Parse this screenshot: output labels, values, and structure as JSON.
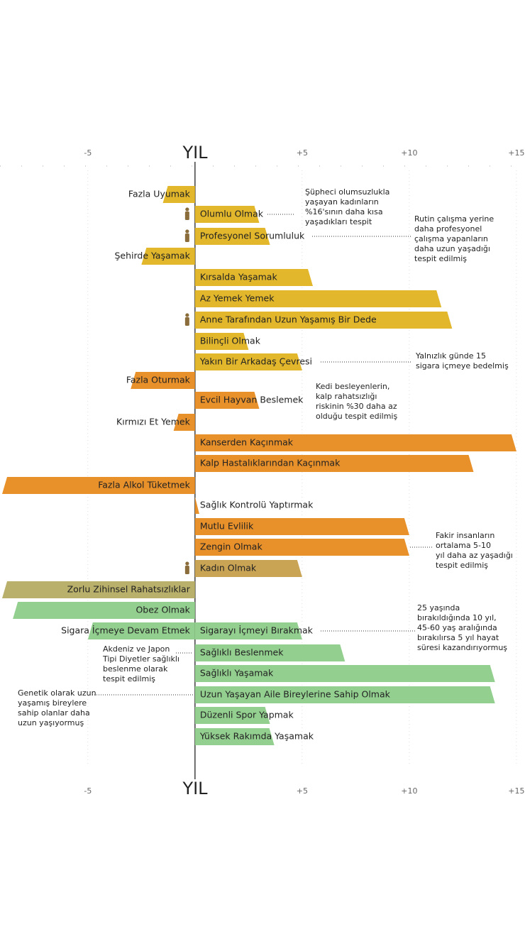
{
  "chart_data": {
    "type": "bar",
    "orientation": "horizontal",
    "x_label": "YIL",
    "categories": [
      "Fazla Uyumak",
      "Olumlu Olmak",
      "Profesyonel Sorumluluk",
      "Şehirde Yaşamak",
      "Kırsalda Yaşamak",
      "Az Yemek Yemek",
      "Anne Tarafından Uzun Yaşamış Bir Dede",
      "Bilinçli Olmak",
      "Yakın Bir Arkadaş Çevresi",
      "Fazla Oturmak",
      "Evcil Hayvan Beslemek",
      "Kırmızı Et Yemek",
      "Kanserden Kaçınmak",
      "Kalp Hastalıklarından Kaçınmak",
      "Fazla Alkol Tüketmek",
      "Sağlık Kontrolü Yaptırmak",
      "Mutlu Evlilik",
      "Zengin Olmak",
      "Kadın Olmak",
      "Zorlu Zihinsel Rahatsızlıklar",
      "Obez Olmak",
      "Sigara İçmeye Devam Etmek",
      "Sigarayı İçmeyi Bırakmak",
      "Sağlıklı Beslenmek",
      "Sağlıklı Yaşamak",
      "Uzun Yaşayan Aile Bireylerine Sahip Olmak",
      "Düzenli Spor Yapmak",
      "Yüksek Rakımda Yaşamak"
    ],
    "values": [
      -1.5,
      3,
      3.5,
      -2.5,
      5.5,
      11.5,
      12,
      2.5,
      5,
      -3,
      3,
      -1,
      15,
      13,
      -9,
      0.2,
      10,
      10,
      5,
      -9,
      -8.5,
      -5,
      5,
      7,
      14,
      14,
      3.5,
      3.7
    ],
    "colors": [
      "#e2b72b",
      "#e2b72b",
      "#e2b72b",
      "#e2b72b",
      "#e2b72b",
      "#e2b72b",
      "#e2b72b",
      "#e2b72b",
      "#e2b72b",
      "#e8902a",
      "#e8902a",
      "#e8902a",
      "#e8902a",
      "#e8902a",
      "#e8902a",
      "#e8902a",
      "#e8902a",
      "#e8902a",
      "#caa455",
      "#b9b06b",
      "#93cf8f",
      "#93cf8f",
      "#93cf8f",
      "#93cf8f",
      "#93cf8f",
      "#93cf8f",
      "#93cf8f",
      "#93cf8f"
    ],
    "xlim": [
      -9.1,
      15.4
    ],
    "xticks": [
      -5,
      {
        "value": 5,
        "label": "+5"
      },
      {
        "value": 10,
        "label": "+10"
      },
      {
        "value": 15,
        "label": "+15"
      }
    ],
    "annotations": [
      {
        "lines": [
          "Şüpheci olumsuzlukla",
          "yaşayan kadınların",
          "%16'sının daha kısa",
          "yaşadıkları tespit"
        ]
      },
      {
        "lines": [
          "Rutin çalışma yerine",
          "daha profesyonel",
          "çalışma yapanların",
          "daha uzun yaşadığı",
          "tespit edilmiş"
        ]
      },
      {
        "lines": [
          "Yalnızlık günde 15",
          "sigara içmeye bedelmiş"
        ]
      },
      {
        "lines": [
          "Kedi besleyenlerin,",
          "kalp rahatsızlığı",
          "riskinin %30 daha az",
          "olduğu tespit edilmiş"
        ]
      },
      {
        "lines": [
          "Fakir insanların",
          "ortalama 5-10",
          "yıl daha az yaşadığı",
          "tespit edilmiş"
        ]
      },
      {
        "lines": [
          "25 yaşında",
          "bırakıldığında 10 yıl,",
          "45-60 yaş aralığında",
          "bırakılırsa 5 yıl hayat",
          "süresi kazandırıyormuş"
        ]
      },
      {
        "lines": [
          "Akdeniz ve Japon",
          "Tipi Diyetler sağlıklı",
          "beslenme olarak",
          "tespit edilmiş"
        ]
      },
      {
        "lines": [
          "Genetik olarak uzun",
          "yaşamış bireylere",
          "sahip olanlar daha",
          "uzun yaşıyormuş"
        ]
      }
    ]
  }
}
